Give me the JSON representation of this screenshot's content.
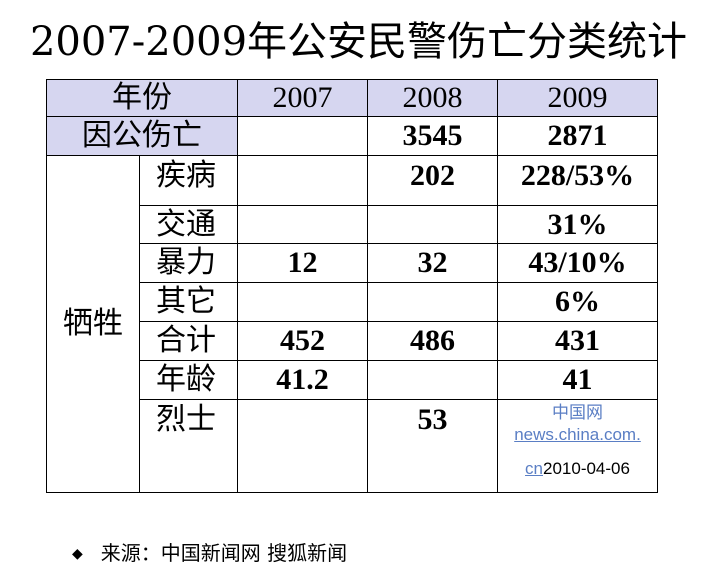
{
  "title": "2007-2009年公安民警伤亡分类统计",
  "table": {
    "header": {
      "label": "年份",
      "years": [
        "2007",
        "2008",
        "2009"
      ]
    },
    "injury_row": {
      "label": "因公伤亡",
      "values": [
        "",
        "3545",
        "2871"
      ]
    },
    "sacrifice_label": "牺牲",
    "rows": [
      {
        "label": "疾病",
        "values": [
          "",
          "202",
          "228/53%"
        ]
      },
      {
        "label": "交通",
        "values": [
          "",
          "",
          "31%"
        ]
      },
      {
        "label": "暴力",
        "values": [
          "12",
          "32",
          "43/10%"
        ]
      },
      {
        "label": "其它",
        "values": [
          "",
          "",
          "6%"
        ]
      },
      {
        "label": "合计",
        "values": [
          "452",
          "486",
          "431"
        ]
      },
      {
        "label": "年龄",
        "values": [
          "41.2",
          "",
          "41"
        ]
      },
      {
        "label": "烈士",
        "values": [
          "",
          "53",
          ""
        ]
      }
    ],
    "watermark": {
      "line1": "中国网",
      "line2": "news.china.com.",
      "line3_link": "cn",
      "date": "2010-04-06"
    }
  },
  "source": {
    "bullet": "◆",
    "text": "来源：中国新闻网  搜狐新闻"
  },
  "colors": {
    "header_bg": "#d6d6f0",
    "link": "#5a7ec4"
  }
}
